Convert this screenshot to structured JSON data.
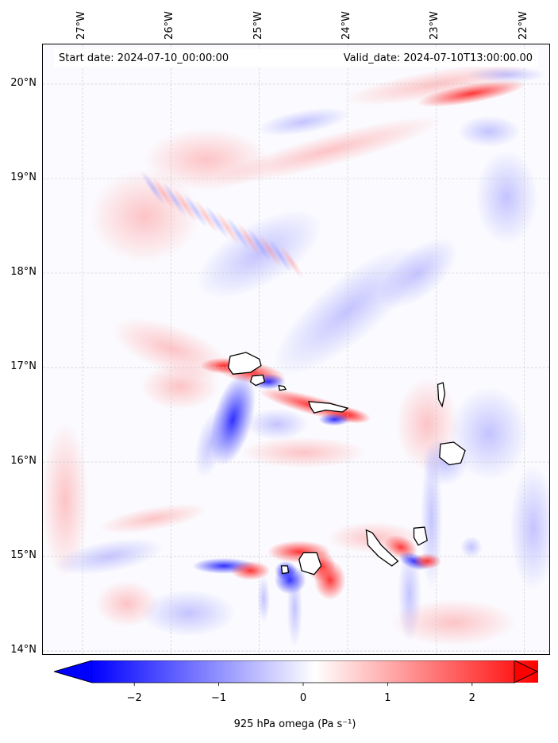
{
  "map": {
    "start_date_label": "Start date: 2024-07-10_00:00:00",
    "valid_date_label": "Valid_date: 2024-07-10T13:00:00.00",
    "lon_range": [
      -27.45,
      -21.7
    ],
    "lat_range": [
      13.95,
      20.42
    ],
    "lon_ticks": [
      "27°W",
      "26°W",
      "25°W",
      "24°W",
      "23°W",
      "22°W"
    ],
    "lon_tick_values": [
      -27,
      -26,
      -25,
      -24,
      -23,
      -22
    ],
    "lat_ticks": [
      "20°N",
      "19°N",
      "18°N",
      "17°N",
      "16°N",
      "15°N",
      "14°N"
    ],
    "lat_tick_values": [
      20,
      19,
      18,
      17,
      16,
      15,
      14
    ],
    "gridlines": true,
    "islands": [
      "Santo Antão",
      "São Vicente",
      "Santa Luzia",
      "São Nicolau",
      "Sal",
      "Boa Vista",
      "Santiago",
      "Fogo",
      "Brava",
      "Maio"
    ]
  },
  "colorbar": {
    "label": "925 hPa omega (Pa s⁻¹)",
    "ticks": [
      "−2",
      "−1",
      "0",
      "1",
      "2"
    ],
    "tick_values": [
      -2,
      -1,
      0,
      1,
      2
    ],
    "range": [
      -2.5,
      2.5
    ],
    "colormap": "bwr",
    "color_low": "#0000ff",
    "color_mid": "#ffffff",
    "color_high": "#ff0000",
    "extend": "both"
  }
}
